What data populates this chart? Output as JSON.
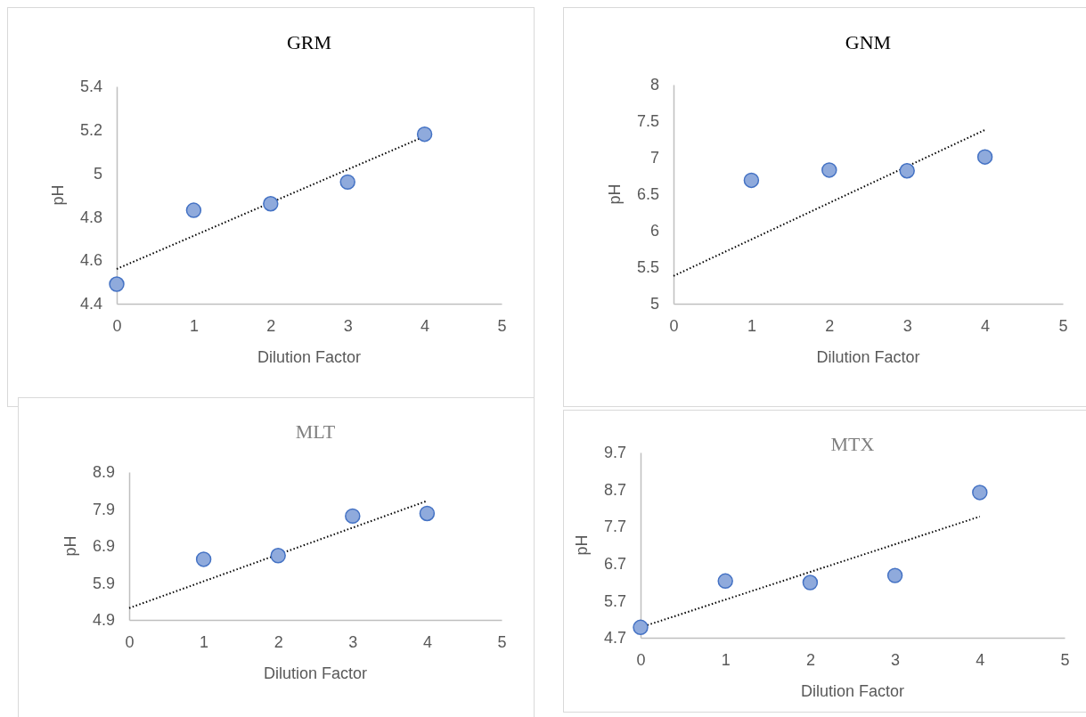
{
  "chart_data": [
    {
      "type": "scatter",
      "title": "GRM",
      "xlabel": "Dilution Factor",
      "ylabel": "pH",
      "xlim": [
        0,
        5
      ],
      "xticks": [
        0,
        1,
        2,
        3,
        4,
        5
      ],
      "ylim": [
        4.4,
        5.4
      ],
      "yticks": [
        4.4,
        4.6,
        4.8,
        5,
        5.2,
        5.4
      ],
      "grid": false,
      "series": [
        {
          "marker": "circle",
          "color": "#8faadc",
          "x": [
            0,
            1,
            2,
            3,
            4
          ],
          "values": [
            4.49,
            4.83,
            4.86,
            4.96,
            5.18
          ]
        },
        {
          "type": "line",
          "line_style": "dotted",
          "marker": "none",
          "color": "#000000",
          "x": [
            0,
            4
          ],
          "values": [
            4.56,
            5.17
          ]
        }
      ]
    },
    {
      "type": "scatter",
      "title": "GNM",
      "xlabel": "Dilution Factor",
      "ylabel": "pH",
      "xlim": [
        0,
        5
      ],
      "xticks": [
        0,
        1,
        2,
        3,
        4,
        5
      ],
      "ylim": [
        5,
        8
      ],
      "yticks": [
        5,
        5.5,
        6,
        6.5,
        7,
        7.5,
        8
      ],
      "grid": false,
      "series": [
        {
          "marker": "circle",
          "color": "#8faadc",
          "x": [
            1,
            2,
            3,
            4
          ],
          "values": [
            6.69,
            6.83,
            6.82,
            7.01
          ]
        },
        {
          "type": "line",
          "line_style": "dotted",
          "marker": "none",
          "color": "#000000",
          "x": [
            0,
            4
          ],
          "values": [
            5.38,
            7.38
          ]
        }
      ]
    },
    {
      "type": "scatter",
      "title": "MLT",
      "xlabel": "Dilution Factor",
      "ylabel": "pH",
      "xlim": [
        0,
        5
      ],
      "xticks": [
        0,
        1,
        2,
        3,
        4,
        5
      ],
      "ylim": [
        4.9,
        8.9
      ],
      "yticks": [
        4.9,
        5.9,
        6.9,
        7.9,
        8.9
      ],
      "grid": false,
      "series": [
        {
          "marker": "circle",
          "color": "#8faadc",
          "x": [
            1,
            2,
            3,
            4
          ],
          "values": [
            6.54,
            6.64,
            7.71,
            7.78
          ]
        },
        {
          "type": "line",
          "line_style": "dotted",
          "marker": "none",
          "color": "#000000",
          "x": [
            0,
            4
          ],
          "values": [
            5.22,
            8.12
          ]
        }
      ]
    },
    {
      "type": "scatter",
      "title": "MTX",
      "xlabel": "Dilution Factor",
      "ylabel": "pH",
      "xlim": [
        0,
        5
      ],
      "xticks": [
        0,
        1,
        2,
        3,
        4,
        5
      ],
      "ylim": [
        4.7,
        9.7
      ],
      "yticks": [
        4.7,
        5.7,
        6.7,
        7.7,
        8.7,
        9.7
      ],
      "grid": false,
      "series": [
        {
          "marker": "circle",
          "color": "#8faadc",
          "x": [
            0,
            1,
            2,
            3,
            4
          ],
          "values": [
            4.98,
            6.23,
            6.19,
            6.38,
            8.62
          ]
        },
        {
          "type": "line",
          "line_style": "dotted",
          "marker": "none",
          "color": "#000000",
          "x": [
            0,
            4
          ],
          "values": [
            4.98,
            7.97
          ]
        }
      ]
    }
  ]
}
